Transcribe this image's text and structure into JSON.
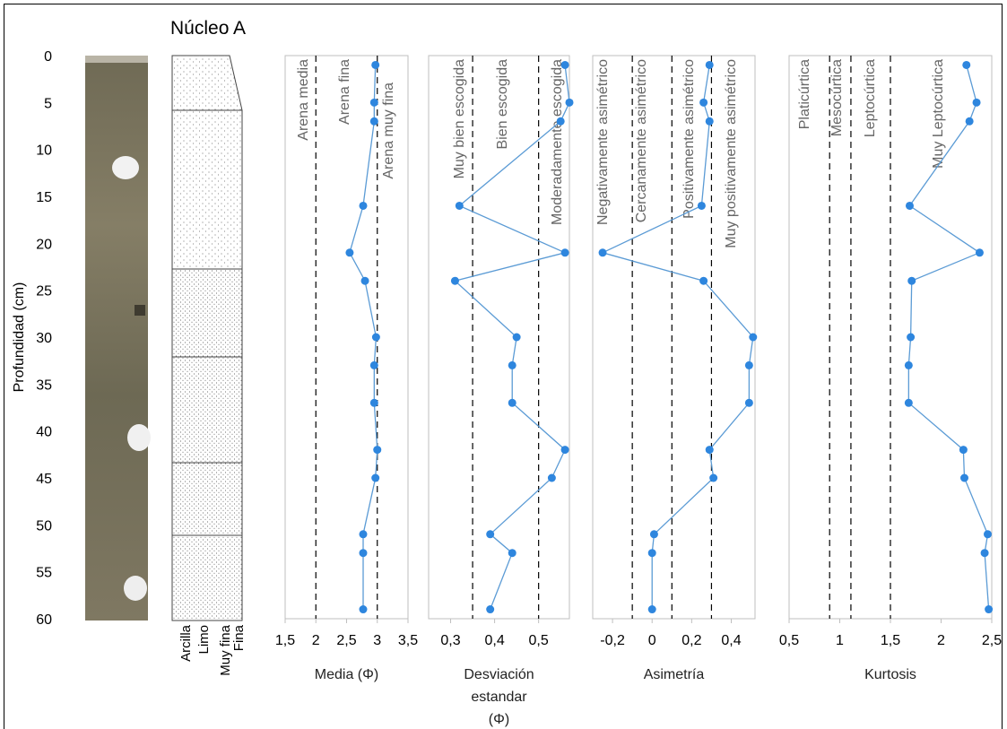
{
  "title": "Núcleo A",
  "depth_axis": {
    "label": "Profundidad (cm)",
    "ylim": [
      0,
      60
    ],
    "yticks": [
      0,
      5,
      10,
      15,
      20,
      25,
      30,
      35,
      40,
      45,
      50,
      55,
      60
    ]
  },
  "lithology": {
    "labels": [
      "Arcilla",
      "Limo",
      "Muy fina",
      "Fina"
    ]
  },
  "chart_data": [
    {
      "type": "line",
      "x_label": "Media (Φ)",
      "color": "#2e86de",
      "xlim": [
        1.5,
        3.5
      ],
      "xticks": [
        {
          "value": 1.5,
          "label": "1,5"
        },
        2,
        {
          "value": 2.5,
          "label": "2,5"
        },
        3,
        {
          "value": 3.5,
          "label": "3,5"
        }
      ],
      "thresholds": [
        2,
        3
      ],
      "annotations": [
        "Arena media",
        "Arena fina",
        "Arena muy fina"
      ],
      "depth": [
        1,
        5,
        7,
        16,
        21,
        24,
        30,
        33,
        37,
        42,
        45,
        51,
        53,
        59
      ],
      "values": [
        2.97,
        2.95,
        2.95,
        2.77,
        2.55,
        2.8,
        2.98,
        2.95,
        2.95,
        3.0,
        2.97,
        2.77,
        2.77,
        2.77
      ]
    },
    {
      "type": "line",
      "x_label": "Desviación estandar (Φ)",
      "color": "#2e86de",
      "xlim": [
        0.25,
        0.57
      ],
      "xticks": [
        {
          "value": 0.3,
          "label": "0,3"
        },
        {
          "value": 0.4,
          "label": "0,4"
        },
        {
          "value": 0.5,
          "label": "0,5"
        }
      ],
      "thresholds": [
        0.35,
        0.5
      ],
      "annotations": [
        "Muy bien escogida",
        "Bien escogida",
        "Moderadamente escogida"
      ],
      "depth": [
        1,
        5,
        7,
        16,
        21,
        24,
        30,
        33,
        37,
        42,
        45,
        51,
        53,
        59
      ],
      "values": [
        0.56,
        0.57,
        0.55,
        0.32,
        0.56,
        0.31,
        0.45,
        0.44,
        0.44,
        0.56,
        0.53,
        0.39,
        0.44,
        0.39
      ]
    },
    {
      "type": "line",
      "x_label": "Asimetría",
      "color": "#2e86de",
      "xlim": [
        -0.3,
        0.52
      ],
      "xticks": [
        {
          "value": -0.2,
          "label": "-0,2"
        },
        0,
        {
          "value": 0.2,
          "label": "0,2"
        },
        {
          "value": 0.4,
          "label": "0,4"
        }
      ],
      "thresholds": [
        -0.1,
        0.1,
        0.3
      ],
      "annotations": [
        "Negativamente asimétrico",
        "Cercanamente asimétrico",
        "Positivamente asimétrico",
        "Muy positivamente asimétrico"
      ],
      "depth": [
        1,
        5,
        7,
        16,
        21,
        24,
        30,
        33,
        37,
        42,
        45,
        51,
        53,
        59
      ],
      "values": [
        0.29,
        0.26,
        0.29,
        0.25,
        -0.25,
        0.26,
        0.51,
        0.49,
        0.49,
        0.29,
        0.31,
        0.01,
        0,
        0
      ]
    },
    {
      "type": "line",
      "x_label": "Kurtosis",
      "color": "#2e86de",
      "xlim": [
        0.5,
        2.5
      ],
      "xticks": [
        {
          "value": 0.5,
          "label": "0,5"
        },
        1,
        {
          "value": 1.5,
          "label": "1,5"
        },
        2,
        {
          "value": 2.5,
          "label": "2,5"
        }
      ],
      "thresholds": [
        0.9,
        1.11,
        1.5
      ],
      "annotations": [
        "Platicúrtica",
        "Mesocúrtica",
        "Leptocúrtica",
        "Muy Leptocúrtica"
      ],
      "depth": [
        1,
        5,
        7,
        16,
        21,
        24,
        30,
        33,
        37,
        42,
        45,
        51,
        53,
        59
      ],
      "values": [
        2.25,
        2.35,
        2.28,
        1.69,
        2.38,
        1.71,
        1.7,
        1.68,
        1.68,
        2.22,
        2.23,
        2.46,
        2.43,
        2.47
      ]
    }
  ]
}
